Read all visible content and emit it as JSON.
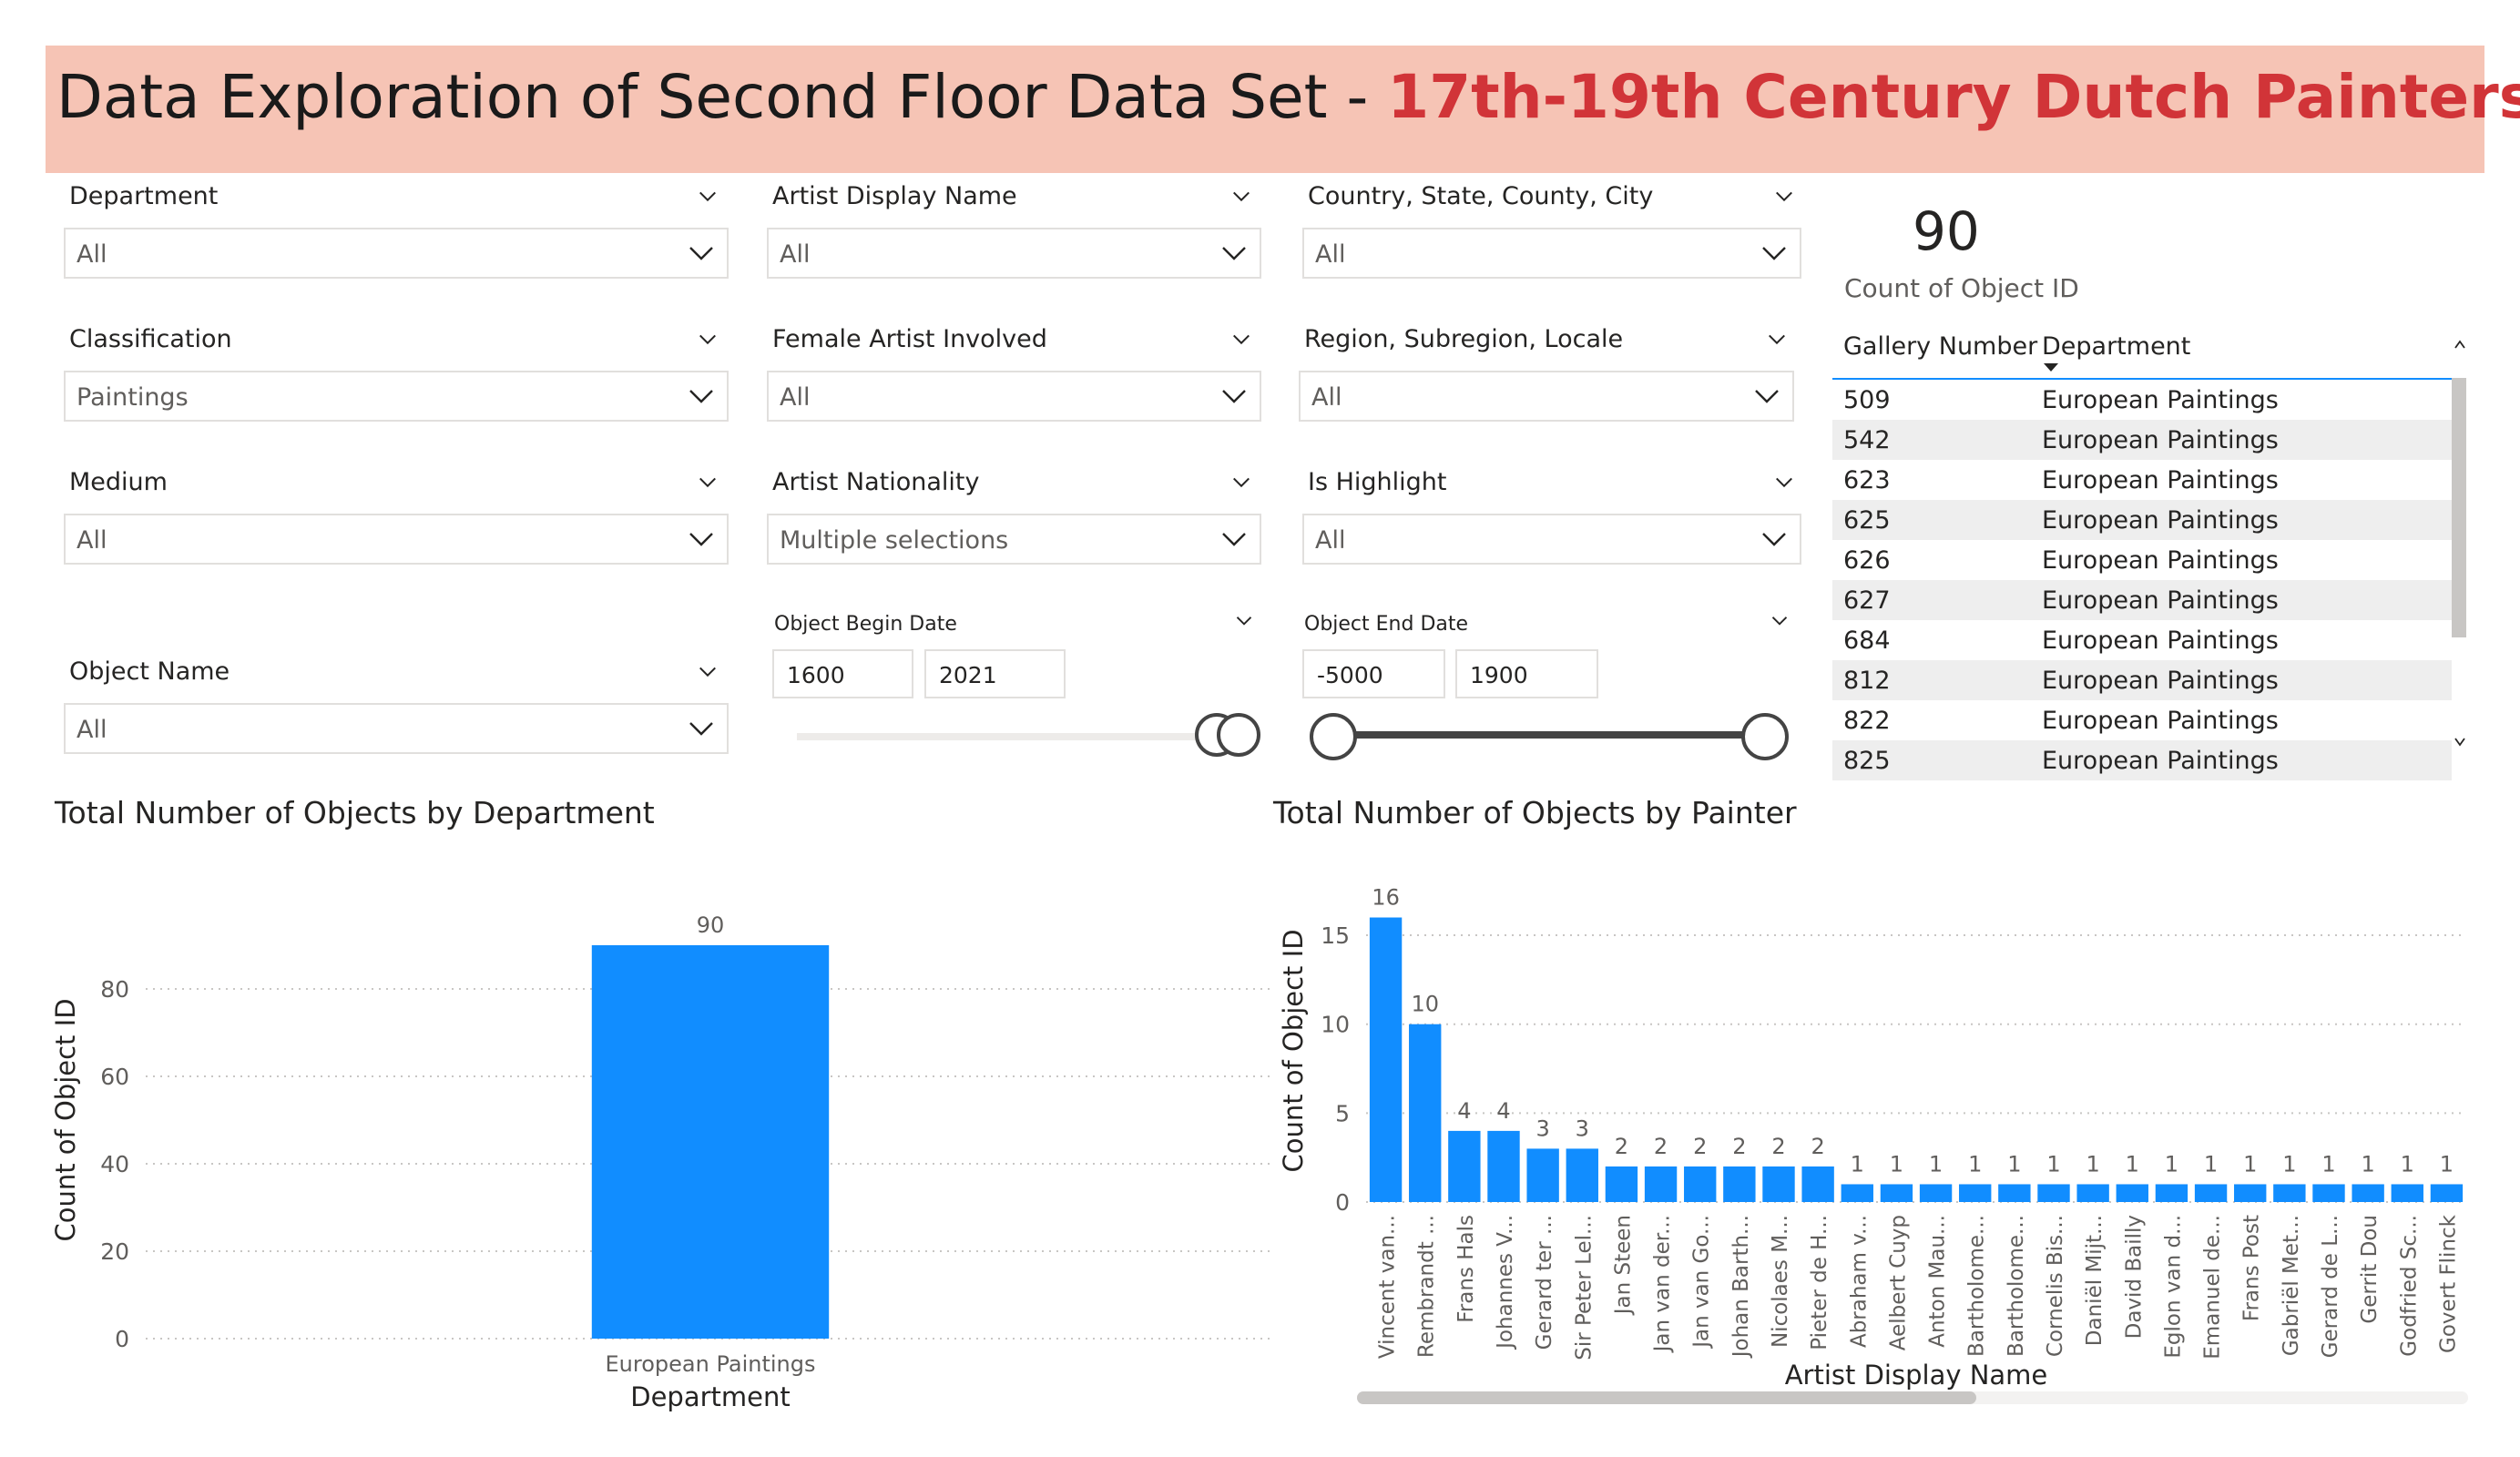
{
  "title": {
    "main": "Data Exploration of Second Floor Data Set - ",
    "highlight": "17th-19th Century Dutch Painters"
  },
  "slicers": {
    "department": {
      "label": "Department",
      "value": "All"
    },
    "classification": {
      "label": "Classification",
      "value": "Paintings"
    },
    "medium": {
      "label": "Medium",
      "value": "All"
    },
    "object_name": {
      "label": "Object Name",
      "value": "All"
    },
    "artist_display_name": {
      "label": "Artist Display Name",
      "value": "All"
    },
    "female_artist": {
      "label": "Female Artist Involved",
      "value": "All"
    },
    "artist_nationality": {
      "label": "Artist Nationality",
      "value": "Multiple selections"
    },
    "country": {
      "label": "Country, State, County, City",
      "value": "All"
    },
    "region": {
      "label": "Region, Subregion, Locale",
      "value": "All"
    },
    "is_highlight": {
      "label": "Is Highlight",
      "value": "All"
    },
    "begin_date": {
      "label": "Object Begin Date",
      "from": "1600",
      "to": "2021"
    },
    "end_date": {
      "label": "Object End Date",
      "from": "-5000",
      "to": "1900"
    }
  },
  "card": {
    "value": "90",
    "label": "Count of Object ID"
  },
  "table": {
    "headers": [
      "Gallery Number",
      "Department"
    ],
    "rows": [
      [
        "509",
        "European Paintings"
      ],
      [
        "542",
        "European Paintings"
      ],
      [
        "623",
        "European Paintings"
      ],
      [
        "625",
        "European Paintings"
      ],
      [
        "626",
        "European Paintings"
      ],
      [
        "627",
        "European Paintings"
      ],
      [
        "684",
        "European Paintings"
      ],
      [
        "812",
        "European Paintings"
      ],
      [
        "822",
        "European Paintings"
      ],
      [
        "825",
        "European Paintings"
      ]
    ]
  },
  "chart_data": [
    {
      "type": "bar",
      "title": "Total Number of Objects by Department",
      "xlabel": "Department",
      "ylabel": "Count of Object ID",
      "categories": [
        "European Paintings"
      ],
      "values": [
        90
      ],
      "yticks": [
        0,
        20,
        40,
        60,
        80
      ],
      "ylim": [
        0,
        100
      ],
      "grid": true,
      "color": "#118dff"
    },
    {
      "type": "bar",
      "title": "Total Number of Objects by Painter",
      "xlabel": "Artist Display Name",
      "ylabel": "Count of Object ID",
      "categories": [
        "Vincent van...",
        "Rembrandt ...",
        "Frans Hals",
        "Johannes V...",
        "Gerard ter ...",
        "Sir Peter Lel...",
        "Jan Steen",
        "Jan van der...",
        "Jan van Go...",
        "Johan Barth...",
        "Nicolaes M...",
        "Pieter de H...",
        "Abraham v...",
        "Aelbert Cuyp",
        "Anton Mau...",
        "Bartholome...",
        "Bartholome...",
        "Cornelis Bis...",
        "Daniël Mijt...",
        "David Bailly",
        "Eglon van d...",
        "Emanuel de...",
        "Frans Post",
        "Gabriël Met...",
        "Gerard de L...",
        "Gerrit Dou",
        "Godfried Sc...",
        "Govert Flinck"
      ],
      "values": [
        16,
        10,
        4,
        4,
        3,
        3,
        2,
        2,
        2,
        2,
        2,
        2,
        1,
        1,
        1,
        1,
        1,
        1,
        1,
        1,
        1,
        1,
        1,
        1,
        1,
        1,
        1,
        1
      ],
      "yticks": [
        0,
        5,
        10,
        15
      ],
      "ylim": [
        0,
        17
      ],
      "grid": true,
      "color": "#118dff"
    }
  ]
}
